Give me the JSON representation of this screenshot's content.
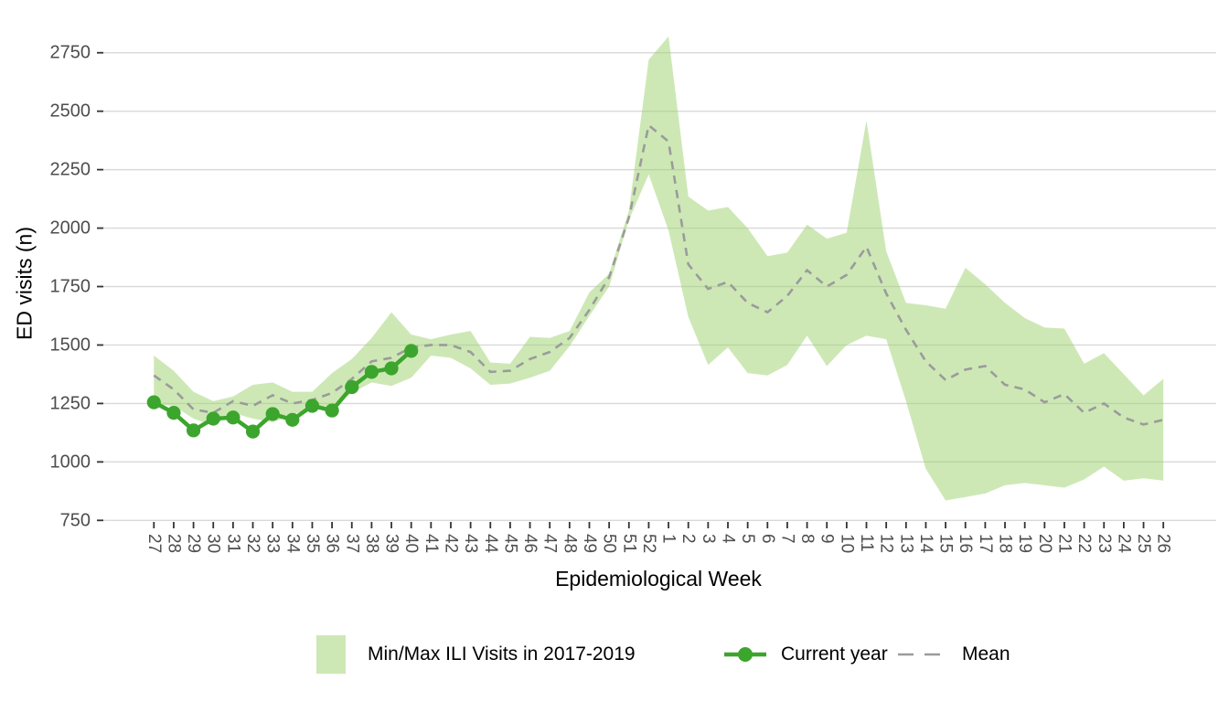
{
  "y_axis": {
    "title": "ED visits (n)",
    "ticks": [
      750,
      1000,
      1250,
      1500,
      1750,
      2000,
      2250,
      2500,
      2750
    ]
  },
  "x_axis": {
    "title": "Epidemiological Week"
  },
  "legend": {
    "band_label": "Min/Max ILI Visits in 2017-2019",
    "line_label": "Current year",
    "mean_label": "Mean"
  },
  "colors": {
    "band_fill": "rgba(155,209,107,0.5)",
    "band_solid": "#CDE8B5",
    "current": "#3CA52D",
    "mean": "#9B9B9B",
    "grid": "#D9D9D9",
    "tick_text": "#4D4D4D",
    "tick_mark": "#333333"
  },
  "chart_data": {
    "type": "line",
    "title": "",
    "xlabel": "Epidemiological Week",
    "ylabel": "ED visits (n)",
    "ylim": [
      750,
      2850
    ],
    "grid": "horizontal-only",
    "legend_position": "bottom",
    "x": [
      "27",
      "28",
      "29",
      "30",
      "31",
      "32",
      "33",
      "34",
      "35",
      "36",
      "37",
      "38",
      "39",
      "40",
      "41",
      "42",
      "43",
      "44",
      "45",
      "46",
      "47",
      "48",
      "49",
      "50",
      "51",
      "52",
      "1",
      "2",
      "3",
      "4",
      "5",
      "6",
      "7",
      "8",
      "9",
      "10",
      "11",
      "12",
      "13",
      "14",
      "15",
      "16",
      "17",
      "18",
      "19",
      "20",
      "21",
      "22",
      "23",
      "24",
      "25",
      "26"
    ],
    "series": [
      {
        "name": "Min/Max ILI Visits in 2017-2019",
        "type": "band",
        "max": [
          1455,
          1390,
          1300,
          1260,
          1280,
          1330,
          1340,
          1300,
          1300,
          1380,
          1440,
          1530,
          1640,
          1545,
          1525,
          1545,
          1560,
          1425,
          1420,
          1535,
          1530,
          1560,
          1725,
          1805,
          2075,
          2720,
          2820,
          2135,
          2075,
          2090,
          2000,
          1880,
          1895,
          2015,
          1955,
          1980,
          2460,
          1900,
          1680,
          1670,
          1655,
          1830,
          1760,
          1680,
          1615,
          1575,
          1570,
          1420,
          1465,
          1375,
          1285,
          1355
        ],
        "min": [
          1245,
          1240,
          1185,
          1155,
          1210,
          1185,
          1170,
          1200,
          1235,
          1240,
          1295,
          1340,
          1325,
          1360,
          1455,
          1445,
          1400,
          1330,
          1335,
          1360,
          1390,
          1495,
          1625,
          1750,
          2035,
          2230,
          1990,
          1620,
          1415,
          1490,
          1380,
          1370,
          1415,
          1540,
          1410,
          1500,
          1540,
          1525,
          1260,
          970,
          835,
          850,
          865,
          900,
          910,
          900,
          890,
          925,
          980,
          920,
          930,
          920
        ]
      },
      {
        "name": "Mean",
        "type": "line-dashed",
        "values": [
          1370,
          1310,
          1225,
          1210,
          1260,
          1240,
          1285,
          1250,
          1265,
          1295,
          1355,
          1430,
          1445,
          1490,
          1500,
          1500,
          1470,
          1385,
          1390,
          1440,
          1470,
          1530,
          1650,
          1790,
          2045,
          2440,
          2370,
          1845,
          1740,
          1770,
          1680,
          1640,
          1710,
          1820,
          1750,
          1800,
          1920,
          1720,
          1565,
          1430,
          1350,
          1395,
          1410,
          1330,
          1310,
          1255,
          1290,
          1210,
          1250,
          1190,
          1160,
          1180
        ]
      },
      {
        "name": "Current year",
        "type": "line-marker",
        "values": [
          1255,
          1210,
          1135,
          1185,
          1190,
          1130,
          1205,
          1180,
          1240,
          1220,
          1320,
          1385,
          1400,
          1475,
          null,
          null,
          null,
          null,
          null,
          null,
          null,
          null,
          null,
          null,
          null,
          null,
          null,
          null,
          null,
          null,
          null,
          null,
          null,
          null,
          null,
          null,
          null,
          null,
          null,
          null,
          null,
          null,
          null,
          null,
          null,
          null,
          null,
          null,
          null,
          null,
          null,
          null
        ]
      }
    ]
  }
}
